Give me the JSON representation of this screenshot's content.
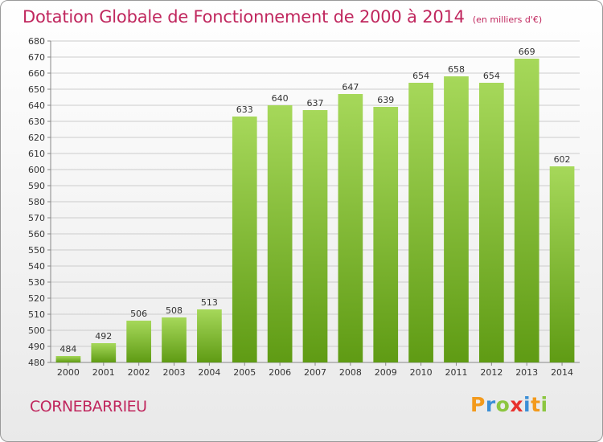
{
  "header": {
    "title": "Dotation Globale de Fonctionnement de 2000 à 2014",
    "unit": "(en milliers d'€)"
  },
  "footer": {
    "commune": "CORNEBARRIEU",
    "logo_text": "Proxiti"
  },
  "colors": {
    "title": "#c0275e",
    "bar_top": "#a6d85a",
    "bar_bottom": "#5f9b14",
    "grid": "#cccccc"
  },
  "chart_data": {
    "type": "bar",
    "title": "Dotation Globale de Fonctionnement de 2000 à 2014",
    "subtitle": "(en milliers d'€)",
    "xlabel": "",
    "ylabel": "",
    "categories": [
      "2000",
      "2001",
      "2002",
      "2003",
      "2004",
      "2005",
      "2006",
      "2007",
      "2008",
      "2009",
      "2010",
      "2011",
      "2012",
      "2013",
      "2014"
    ],
    "values": [
      484,
      492,
      506,
      508,
      513,
      633,
      640,
      637,
      647,
      639,
      654,
      658,
      654,
      669,
      602
    ],
    "ylim": [
      480,
      680
    ],
    "ytick_step": 10,
    "grid": true,
    "data_labels": true
  }
}
